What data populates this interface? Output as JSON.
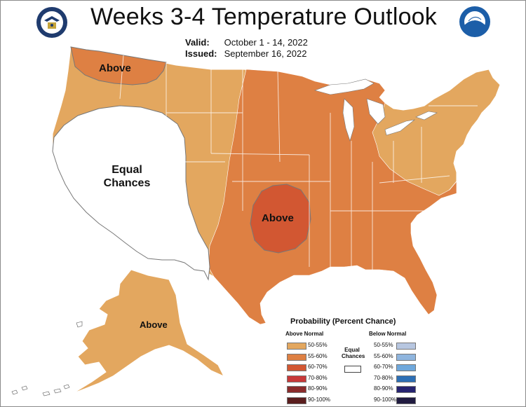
{
  "title": "Weeks 3-4 Temperature Outlook",
  "valid_label": "Valid:",
  "valid_value": "October 1 - 14, 2022",
  "issued_label": "Issued:",
  "issued_value": "September 16, 2022",
  "logos": {
    "left": "doc-seal-icon",
    "right": "noaa-logo-icon"
  },
  "regions": {
    "northwest": "Above",
    "west": "Equal\nChances",
    "southcentral": "Above",
    "alaska": "Above"
  },
  "colors": {
    "above_50_55": "#e3a75f",
    "above_55_60": "#de8043",
    "above_60_70": "#d25732",
    "above_70_80": "#c83939",
    "above_80_90": "#8a2b2b",
    "above_90_100": "#5a1e1e",
    "below_50_55": "#b7c6e0",
    "below_55_60": "#8fb5de",
    "below_60_70": "#6fa8dc",
    "below_70_80": "#2d6fb5",
    "below_80_90": "#262370",
    "below_90_100": "#201b40",
    "equal": "#ffffff",
    "outline": "#ffffff"
  },
  "legend": {
    "title": "Probability (Percent Chance)",
    "above_header": "Above Normal",
    "below_header": "Below Normal",
    "equal_label": "Equal\nChances",
    "above": [
      "50-55%",
      "55-60%",
      "60-70%",
      "70-80%",
      "80-90%",
      "90-100%"
    ],
    "below": [
      "50-55%",
      "55-60%",
      "60-70%",
      "70-80%",
      "80-90%",
      "90-100%"
    ]
  }
}
